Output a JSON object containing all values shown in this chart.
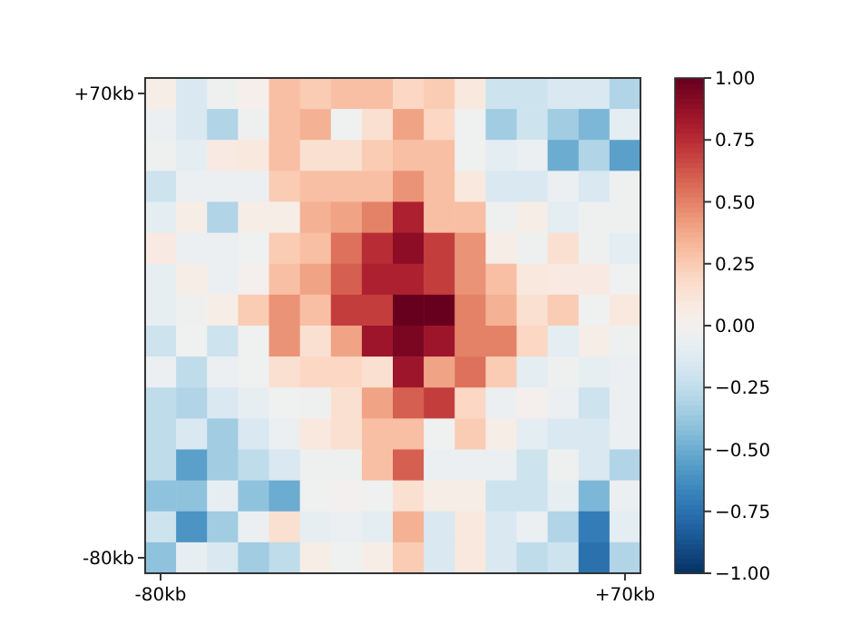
{
  "chart_data": {
    "type": "heatmap",
    "categories": [
      "-80kb",
      null,
      null,
      null,
      null,
      null,
      null,
      null,
      null,
      null,
      null,
      null,
      null,
      null,
      null,
      "+70kb"
    ],
    "y_categories": [
      "+70kb",
      null,
      null,
      null,
      null,
      null,
      null,
      null,
      null,
      null,
      null,
      null,
      null,
      null,
      null,
      "-80kb"
    ],
    "cells": [
      [
        0.05,
        -0.15,
        -0.03,
        0.03,
        0.3,
        0.25,
        0.3,
        0.3,
        0.2,
        0.25,
        0.1,
        -0.2,
        -0.2,
        -0.15,
        -0.15,
        -0.3
      ],
      [
        -0.05,
        -0.15,
        -0.3,
        -0.03,
        0.3,
        0.35,
        -0.02,
        0.15,
        0.4,
        0.2,
        -0.02,
        -0.35,
        -0.2,
        -0.35,
        -0.45,
        -0.1
      ],
      [
        -0.03,
        -0.1,
        0.08,
        0.1,
        0.3,
        0.15,
        0.15,
        0.25,
        0.3,
        0.3,
        -0.02,
        -0.1,
        -0.05,
        -0.5,
        -0.3,
        -0.55
      ],
      [
        -0.2,
        -0.05,
        -0.05,
        -0.05,
        0.25,
        0.3,
        0.3,
        0.3,
        0.45,
        0.3,
        0.1,
        -0.15,
        -0.15,
        -0.05,
        -0.15,
        -0.03
      ],
      [
        -0.1,
        0.05,
        -0.3,
        0.05,
        0.05,
        0.35,
        0.4,
        0.5,
        0.8,
        0.3,
        0.3,
        -0.03,
        0.05,
        -0.1,
        -0.03,
        -0.03
      ],
      [
        0.08,
        -0.05,
        -0.05,
        -0.02,
        0.25,
        0.3,
        0.55,
        0.75,
        0.9,
        0.7,
        0.45,
        0.05,
        -0.03,
        0.15,
        -0.03,
        -0.1
      ],
      [
        -0.08,
        0.05,
        -0.05,
        0.02,
        0.3,
        0.4,
        0.6,
        0.8,
        0.8,
        0.7,
        0.45,
        0.3,
        0.1,
        0.08,
        0.08,
        -0.02
      ],
      [
        -0.08,
        -0.03,
        0.05,
        0.25,
        0.45,
        0.3,
        0.7,
        0.7,
        1.0,
        1.0,
        0.5,
        0.35,
        0.15,
        0.25,
        -0.02,
        0.1
      ],
      [
        -0.2,
        -0.02,
        -0.2,
        -0.02,
        0.45,
        0.15,
        0.4,
        0.85,
        0.95,
        0.85,
        0.5,
        0.5,
        0.2,
        -0.1,
        0.05,
        -0.03
      ],
      [
        -0.05,
        -0.25,
        -0.05,
        -0.02,
        0.15,
        0.2,
        0.2,
        0.15,
        0.85,
        0.4,
        0.55,
        0.25,
        -0.1,
        -0.03,
        -0.08,
        -0.05
      ],
      [
        -0.25,
        -0.3,
        -0.15,
        -0.08,
        -0.02,
        -0.03,
        0.15,
        0.4,
        0.6,
        0.7,
        0.2,
        -0.05,
        0.02,
        -0.05,
        -0.2,
        -0.05
      ],
      [
        -0.25,
        -0.15,
        -0.35,
        -0.15,
        -0.05,
        0.1,
        0.15,
        0.3,
        0.3,
        -0.02,
        0.25,
        0.05,
        -0.1,
        -0.15,
        -0.15,
        -0.05
      ],
      [
        -0.25,
        -0.55,
        -0.35,
        -0.25,
        -0.15,
        -0.03,
        -0.03,
        0.3,
        0.6,
        -0.05,
        -0.05,
        -0.05,
        -0.2,
        -0.03,
        -0.15,
        -0.3
      ],
      [
        -0.4,
        -0.4,
        -0.08,
        -0.4,
        -0.5,
        -0.02,
        0.0,
        -0.02,
        0.15,
        0.05,
        0.05,
        -0.2,
        -0.2,
        -0.08,
        -0.45,
        -0.05
      ],
      [
        -0.2,
        -0.6,
        -0.35,
        -0.05,
        0.15,
        -0.08,
        -0.05,
        -0.1,
        0.35,
        -0.15,
        0.1,
        -0.15,
        -0.05,
        -0.3,
        -0.7,
        -0.1
      ],
      [
        -0.4,
        -0.08,
        -0.15,
        -0.35,
        -0.25,
        0.05,
        -0.02,
        0.05,
        0.25,
        -0.15,
        0.1,
        -0.15,
        -0.25,
        -0.2,
        -0.75,
        -0.3
      ]
    ],
    "clim": [
      -1,
      1
    ],
    "cticks": [
      {
        "value": 1,
        "label": "1.00"
      },
      {
        "value": 0.75,
        "label": "0.75"
      },
      {
        "value": 0.5,
        "label": "0.50"
      },
      {
        "value": 0.25,
        "label": "0.25"
      },
      {
        "value": 0,
        "label": "0.00"
      },
      {
        "value": -0.25,
        "label": "−0.25"
      },
      {
        "value": -0.5,
        "label": "−0.50"
      },
      {
        "value": -0.75,
        "label": "−0.75"
      },
      {
        "value": -1,
        "label": "−1.00"
      }
    ]
  }
}
